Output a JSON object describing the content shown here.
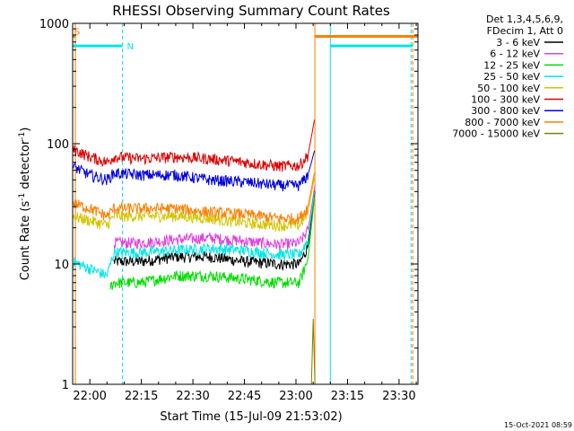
{
  "chart_data": {
    "type": "line",
    "title": "RHESSI Observing Summary Count Rates",
    "xlabel": "Start Time (15-Jul-09 21:53:02)",
    "ylabel_main": "Count Rate (s",
    "ylabel_sup1": "-1",
    "ylabel_mid": " detector",
    "ylabel_sup2": "-1",
    "ylabel_end": ")",
    "yscale": "log",
    "ylim": [
      1,
      1000
    ],
    "xlim_minutes": [
      -5.0,
      95.5
    ],
    "x_tick_labels": [
      "22:00",
      "22:15",
      "22:30",
      "22:45",
      "23:00",
      "23:15",
      "23:30"
    ],
    "x_tick_minutes": [
      0,
      15,
      30,
      45,
      60,
      75,
      90
    ],
    "y_tick_labels": [
      "1",
      "10",
      "100",
      "1000"
    ],
    "y_tick_values": [
      1,
      10,
      100,
      1000
    ],
    "legend_header": [
      "Det 1,3,4,5,6,9,",
      "FDecim 1, Att 0"
    ],
    "series": [
      {
        "name": "3 - 6 keV",
        "color": "#000000",
        "x": [
          7,
          15,
          25,
          35,
          45,
          55,
          61,
          63.5,
          65.5
        ],
        "y": [
          10.5,
          10.5,
          11.5,
          11.5,
          10.5,
          10,
          10,
          14,
          40
        ]
      },
      {
        "name": "6 - 12 keV",
        "color": "#e040e0",
        "x": [
          7,
          15,
          25,
          35,
          45,
          55,
          61,
          63.5,
          65.5
        ],
        "y": [
          15,
          15,
          16,
          16.5,
          15.5,
          14.5,
          15,
          19,
          45
        ]
      },
      {
        "name": "12 - 25 keV",
        "color": "#00dd00",
        "x": [
          6,
          7,
          15,
          20,
          25,
          35,
          45,
          55,
          61,
          63.5,
          65.5
        ],
        "y": [
          6.5,
          7,
          7,
          7.5,
          8,
          8,
          7.5,
          7,
          7,
          11,
          38
        ]
      },
      {
        "name": "25 - 50 keV",
        "color": "#00e5e5",
        "x": [
          -5,
          5,
          7,
          15,
          25,
          35,
          45,
          55,
          61,
          63.5,
          65.5
        ],
        "y": [
          10.5,
          8,
          12.5,
          12.5,
          13,
          13.5,
          13,
          12,
          12,
          16,
          42
        ]
      },
      {
        "name": "50 - 100 keV",
        "color": "#d4c400",
        "x": [
          -5,
          0,
          5,
          7,
          15,
          25,
          35,
          45,
          55,
          61,
          63.5,
          65.5
        ],
        "y": [
          25,
          23,
          21,
          25,
          25,
          25,
          24,
          22,
          21,
          21,
          27,
          55
        ]
      },
      {
        "name": "100 - 300 keV",
        "color": "#dd0000",
        "x": [
          -5,
          0,
          5,
          7,
          15,
          25,
          35,
          45,
          55,
          61,
          63.5,
          65.5
        ],
        "y": [
          90,
          78,
          70,
          78,
          75,
          78,
          75,
          70,
          65,
          66,
          80,
          165
        ]
      },
      {
        "name": "300 - 800 keV",
        "color": "#0000dd",
        "x": [
          -5,
          0,
          5,
          7,
          15,
          25,
          35,
          45,
          55,
          61,
          63.5,
          65.5
        ],
        "y": [
          65,
          55,
          50,
          57,
          55,
          55,
          50,
          48,
          45,
          45,
          55,
          90
        ]
      },
      {
        "name": "800 - 7000 keV",
        "color": "#ff8000",
        "x": [
          -5,
          0,
          5,
          7,
          15,
          25,
          35,
          45,
          55,
          61,
          63.5,
          65.5
        ],
        "y": [
          32,
          29,
          25,
          29,
          29,
          29,
          27,
          26,
          24,
          24,
          30,
          60
        ]
      },
      {
        "name": "7000 - 15000 keV",
        "color": "#808000",
        "x": [
          64.5,
          65,
          65.5
        ],
        "y": [
          1,
          3.5,
          1
        ],
        "visible_marks": "spike"
      }
    ],
    "flags": [
      {
        "label": "S",
        "color": "#ff8000",
        "segments": [
          [
            -5,
            -4.2
          ],
          [
            65.5,
            95.5
          ]
        ],
        "level": 780,
        "labels_at_minutes": [
          -4.5
        ]
      },
      {
        "label": "N",
        "color": "#00e5e5",
        "segments": [
          [
            -5,
            9.5
          ],
          [
            70,
            94
          ]
        ],
        "level": 650,
        "labels_at_minutes": [
          10.8
        ]
      }
    ],
    "vlines": [
      {
        "minutes": -4.2,
        "color": "#ff8000",
        "style": "solid"
      },
      {
        "minutes": 65.5,
        "color": "#ff8000",
        "style": "solid"
      },
      {
        "minutes": 9.5,
        "color": "#00e5e5",
        "style": "dashed"
      },
      {
        "minutes": 70,
        "color": "#00e5e5",
        "style": "solid"
      },
      {
        "minutes": 93.5,
        "color": "#00e5e5",
        "style": "dashed"
      },
      {
        "minutes": 94,
        "color": "#ff8000",
        "style": "dashed"
      }
    ],
    "footer_timestamp": "15-Oct-2021 08:59"
  }
}
